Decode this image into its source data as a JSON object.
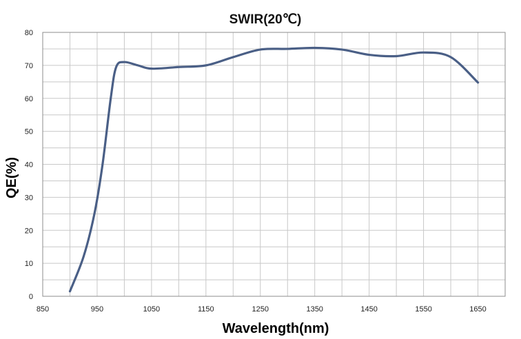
{
  "chart_data": {
    "type": "line",
    "title": "SWIR(20℃)",
    "xlabel": "Wavelength(nm)",
    "ylabel": "QE(%)",
    "xlim": [
      850,
      1700
    ],
    "ylim": [
      0,
      80
    ],
    "x_ticks": [
      850,
      950,
      1050,
      1150,
      1250,
      1350,
      1450,
      1550,
      1650
    ],
    "x_tick_labels": [
      "850",
      "950",
      "1050",
      "1150",
      "1250",
      "1350",
      "1450",
      "1550",
      "1650"
    ],
    "y_ticks": [
      0,
      10,
      20,
      30,
      40,
      50,
      60,
      70,
      80
    ],
    "y_tick_labels": [
      "0",
      "10",
      "20",
      "30",
      "40",
      "50",
      "60",
      "70",
      "80"
    ],
    "grid": true,
    "legend": "none",
    "series": [
      {
        "color": "#4a5f86",
        "x": [
          900,
          925,
          945,
          960,
          975,
          985,
          1000,
          1025,
          1050,
          1100,
          1150,
          1200,
          1250,
          1300,
          1350,
          1400,
          1450,
          1500,
          1550,
          1600,
          1650
        ],
        "y": [
          1.5,
          12,
          25,
          40,
          60,
          69.5,
          71,
          70,
          69,
          69.5,
          70,
          72.5,
          74.8,
          75,
          75.3,
          74.8,
          73.2,
          72.8,
          73.9,
          72.5,
          64.8
        ]
      }
    ]
  }
}
